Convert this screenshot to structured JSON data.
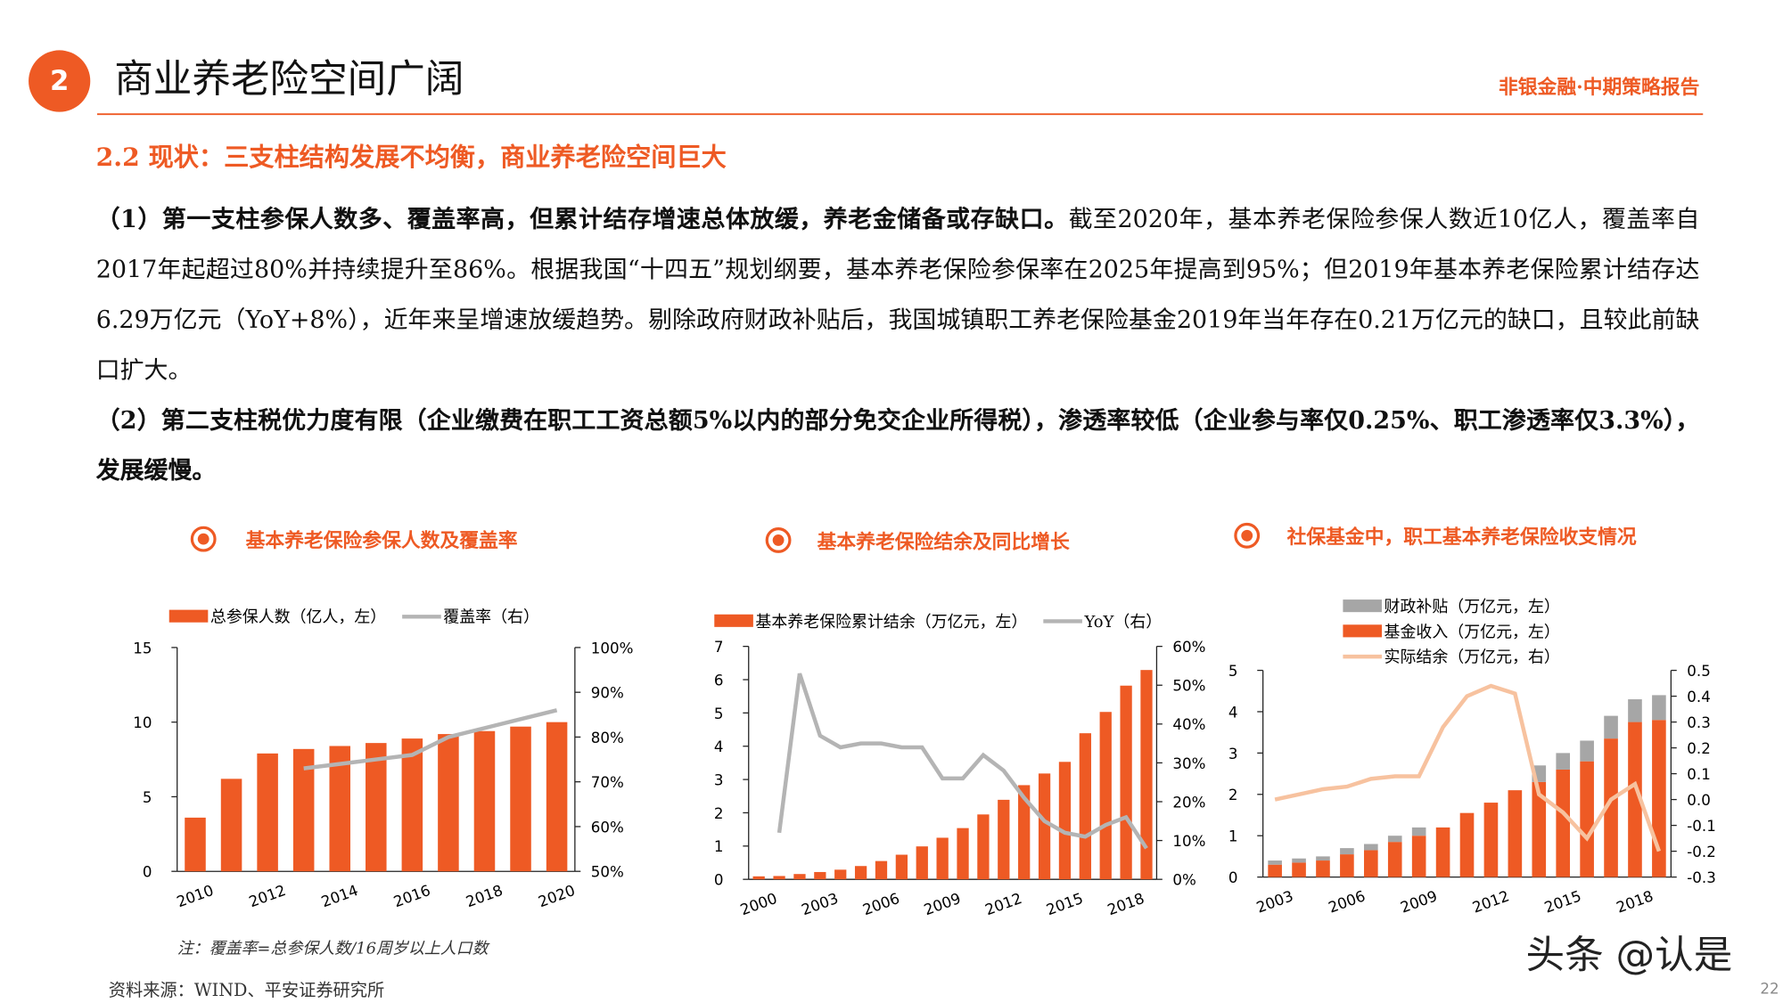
{
  "header": {
    "number": "2",
    "title": "商业养老险空间广阔",
    "report": "非银金融·中期策略报告"
  },
  "section": "2.2 现状：三支柱结构发展不均衡，商业养老险空间巨大",
  "paragraphs": [
    {
      "bold": "（1）第一支柱参保人数多、覆盖率高，但累计结存增速总体放缓，养老金储备或存缺口。",
      "text": "截至2020年，基本养老保险参保人数近10亿人，覆盖率自2017年起超过80%并持续提升至86%。根据我国“十四五”规划纲要，基本养老保险参保率在2025年提高到95%；但2019年基本养老保险累计结存达6.29万亿元（YoY+8%），近年来呈增速放缓趋势。剔除政府财政补贴后，我国城镇职工养老保险基金2019年当年存在0.21万亿元的缺口，且较此前缺口扩大。"
    },
    {
      "bold": "（2）第二支柱税优力度有限（企业缴费在职工工资总额5%以内的部分免交企业所得税），渗透率较低（企业参与率仅0.25%、职工渗透率仅3.3%），发展缓慢。"
    }
  ],
  "chart_data": [
    {
      "type": "combo",
      "title": "基本养老保险参保人数及覆盖率",
      "legend": "top",
      "categories": [
        "2010",
        null,
        "2012",
        null,
        "2014",
        null,
        "2016",
        null,
        "2018",
        null,
        "2020"
      ],
      "series": [
        {
          "name": "总参保人数（亿人，左）",
          "kind": "bar",
          "color": "#ee5a24",
          "values": [
            3.6,
            6.2,
            7.9,
            8.2,
            8.4,
            8.6,
            8.9,
            9.2,
            9.4,
            9.7,
            10.0
          ]
        },
        {
          "name": "覆盖率（右）",
          "kind": "line",
          "axis": "y2",
          "color": "#b4b4b4",
          "values": [
            null,
            null,
            null,
            73,
            74,
            75,
            76,
            80,
            82,
            84,
            86
          ]
        }
      ],
      "ylim": [
        0,
        15
      ],
      "yticks": [
        0,
        5,
        10,
        15
      ],
      "y2lim": [
        50,
        100
      ],
      "y2ticks": [
        {
          "value": 50,
          "label": "50%"
        },
        {
          "value": 60,
          "label": "60%"
        },
        {
          "value": 70,
          "label": "70%"
        },
        {
          "value": 80,
          "label": "80%"
        },
        {
          "value": 90,
          "label": "90%"
        },
        {
          "value": 100,
          "label": "100%"
        }
      ]
    },
    {
      "type": "combo",
      "title": "基本养老保险结余及同比增长",
      "legend": "top",
      "categories": [
        "2000",
        null,
        null,
        "2003",
        null,
        null,
        "2006",
        null,
        null,
        "2009",
        null,
        null,
        "2012",
        null,
        null,
        "2015",
        null,
        null,
        "2018",
        null
      ],
      "series": [
        {
          "name": "基本养老保险累计结余（万亿元，左）",
          "kind": "bar",
          "color": "#ee5a24",
          "values": [
            0.09,
            0.1,
            0.16,
            0.22,
            0.29,
            0.4,
            0.55,
            0.74,
            0.99,
            1.25,
            1.54,
            1.95,
            2.39,
            2.83,
            3.18,
            3.53,
            4.39,
            5.03,
            5.82,
            6.29
          ]
        },
        {
          "name": "YoY（右）",
          "kind": "line",
          "axis": "y2",
          "color": "#b4b4b4",
          "values": [
            null,
            12,
            53,
            37,
            34,
            35,
            35,
            34,
            34,
            26,
            26,
            32,
            28,
            21,
            15,
            12,
            11,
            14,
            16,
            8
          ]
        }
      ],
      "ylim": [
        0,
        7
      ],
      "yticks": [
        0,
        1,
        2,
        3,
        4,
        5,
        6,
        7
      ],
      "y2lim": [
        0,
        60
      ],
      "y2ticks": [
        {
          "value": 0,
          "label": "0%"
        },
        {
          "value": 10,
          "label": "10%"
        },
        {
          "value": 20,
          "label": "20%"
        },
        {
          "value": 30,
          "label": "30%"
        },
        {
          "value": 40,
          "label": "40%"
        },
        {
          "value": 50,
          "label": "50%"
        },
        {
          "value": 60,
          "label": "60%"
        }
      ]
    },
    {
      "type": "combo",
      "title": "社保基金中，职工基本养老保险收支情况",
      "legend": "top-left",
      "stacked": true,
      "categories": [
        "2003",
        null,
        null,
        "2006",
        null,
        null,
        "2009",
        null,
        null,
        "2012",
        null,
        null,
        "2015",
        null,
        null,
        "2018",
        null
      ],
      "series": [
        {
          "name": "财政补贴（万亿元，左）",
          "kind": "bar",
          "color": "#a6a6a6",
          "values": [
            0.1,
            0.1,
            0.1,
            0.15,
            0.15,
            0.15,
            0.2,
            0,
            0,
            0,
            0,
            0.4,
            0.4,
            0.5,
            0.55,
            0.55,
            0.6
          ]
        },
        {
          "name": "基金收入（万亿元，左）",
          "kind": "bar",
          "color": "#ee5a24",
          "values": [
            0.3,
            0.35,
            0.4,
            0.55,
            0.65,
            0.85,
            1.0,
            1.2,
            1.55,
            1.8,
            2.1,
            2.3,
            2.6,
            2.8,
            3.35,
            3.75,
            3.8
          ]
        },
        {
          "name": "实际结余（万亿元，右）",
          "kind": "line",
          "axis": "y2",
          "color": "#f7c29f",
          "values": [
            0,
            0.02,
            0.04,
            0.05,
            0.08,
            0.09,
            0.09,
            0.28,
            0.4,
            0.44,
            0.41,
            0.02,
            -0.05,
            -0.15,
            0,
            0.06,
            -0.2
          ]
        }
      ],
      "ylim": [
        0,
        5
      ],
      "yticks": [
        0,
        1,
        2,
        3,
        4,
        5
      ],
      "y2lim": [
        -0.3,
        0.5
      ],
      "y2ticks": [
        -0.3,
        -0.2,
        -0.1,
        {
          "value": 0,
          "label": "0.0"
        },
        0.1,
        0.2,
        0.3,
        0.4,
        0.5
      ]
    }
  ],
  "note": "注：覆盖率=总参保人数/16周岁以上人口数",
  "source": "资料来源：WIND、平安证券研究所",
  "watermark": "头条 @认是",
  "page": "22"
}
